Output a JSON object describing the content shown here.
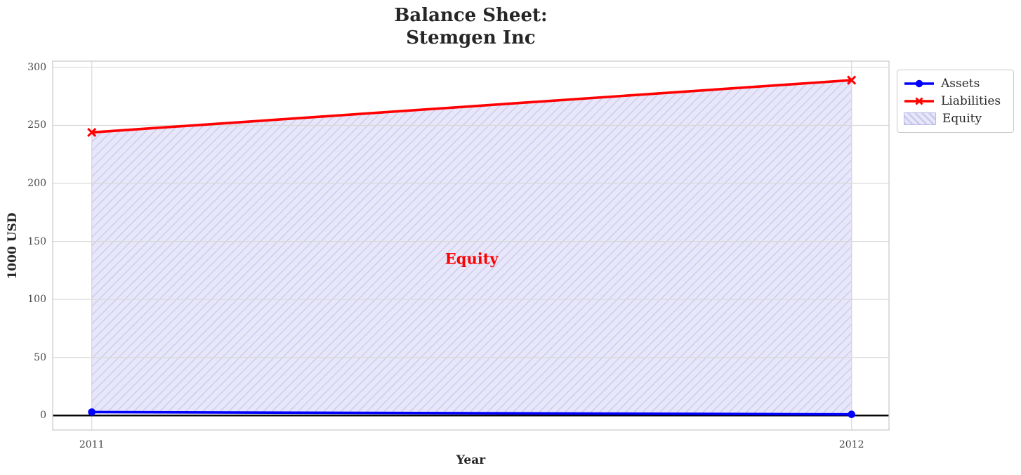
{
  "chart_data": {
    "type": "line",
    "title": "Balance Sheet:\nStemgen Inc",
    "title_lines": "Balance Sheet:\nStemgen Inc",
    "xlabel": "Year",
    "ylabel": "1000 USD",
    "x": [
      2011,
      2012
    ],
    "xticks": [
      "2011",
      "2012"
    ],
    "yticks": [
      0,
      50,
      100,
      150,
      200,
      250,
      300
    ],
    "ylim": [
      -12.5,
      305.4
    ],
    "grid": true,
    "legend_position": "upper right, outside plot",
    "series": [
      {
        "name": "Assets",
        "color": "#0000ff",
        "marker": "circle",
        "values": [
          3,
          1
        ]
      },
      {
        "name": "Liabilities",
        "color": "#ff0000",
        "marker": "x",
        "values": [
          244,
          289
        ]
      }
    ],
    "area": {
      "name": "Equity",
      "between": [
        "Liabilities",
        "Assets"
      ],
      "fill": "#e7e7f9",
      "hatch": "/",
      "hatch_color": "#c9c9ee",
      "edge_color": "#b9b9e8",
      "label": {
        "text": "Equity",
        "color": "#ff0000",
        "x": 2011.5,
        "y": 135
      }
    },
    "zero_line": {
      "y": 0,
      "color": "#000000"
    },
    "colors": {
      "grid": "#d9d9d9",
      "spine": "#cccccc",
      "tick_text": "#474747",
      "text": "#262626"
    }
  }
}
